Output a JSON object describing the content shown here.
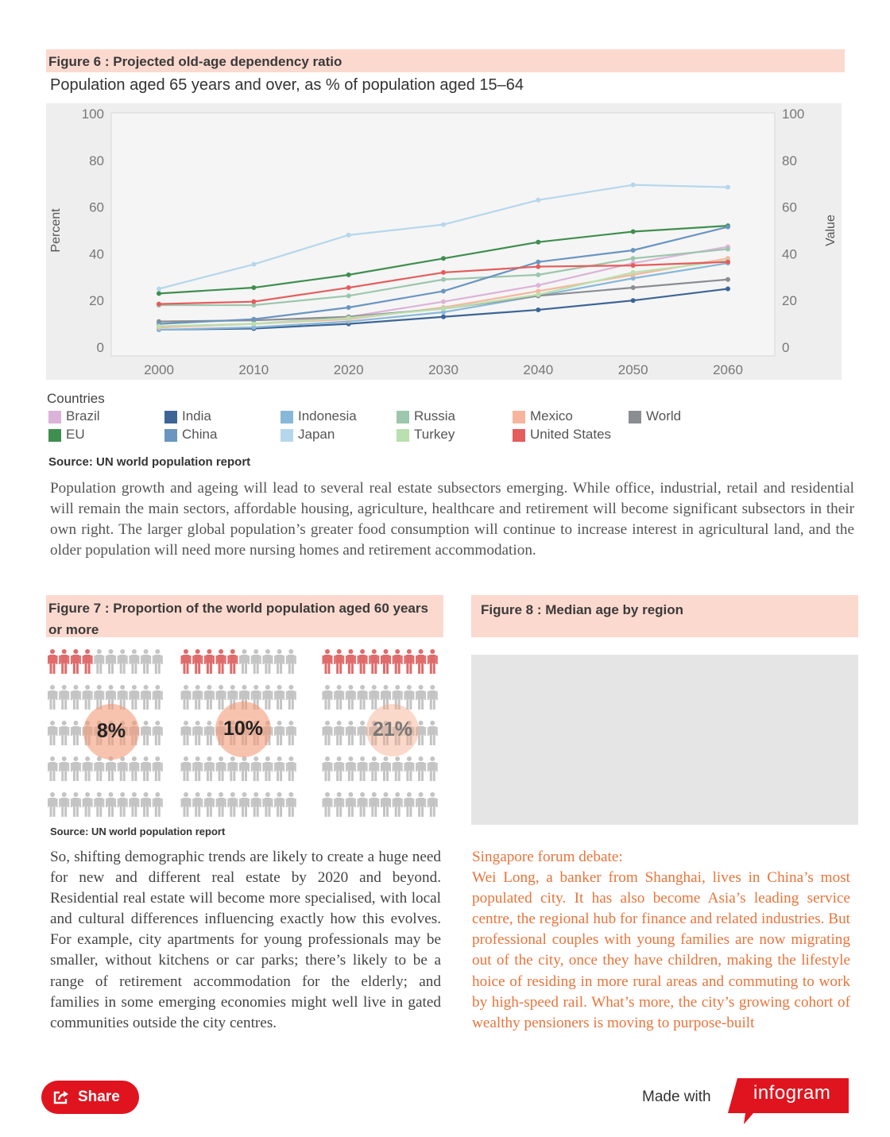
{
  "figure6": {
    "title": "Figure 6 : Projected old-age dependency ratio",
    "subtitle": "Population aged 65 years and over, as % of population aged 15–64",
    "source": "Source: UN world population report",
    "legend_title": "Countries"
  },
  "chart_data": {
    "type": "line",
    "x": [
      2000,
      2010,
      2020,
      2030,
      2040,
      2050,
      2060
    ],
    "ylabel": "Percent",
    "ylabel_right": "Value",
    "ylim": [
      0,
      100
    ],
    "yticks": [
      0,
      20,
      40,
      60,
      80,
      100
    ],
    "grid": false,
    "legend_position": "bottom",
    "series": [
      {
        "name": "Brazil",
        "color": "#dcb3d8",
        "values": [
          8.5,
          10,
          13,
          19.5,
          26.5,
          36,
          43
        ]
      },
      {
        "name": "India",
        "color": "#3c6596",
        "values": [
          7.5,
          8,
          10,
          13,
          16,
          20,
          25
        ]
      },
      {
        "name": "Indonesia",
        "color": "#88b8d8",
        "values": [
          7.5,
          8.5,
          11,
          15,
          22,
          29.5,
          36
        ]
      },
      {
        "name": "Russia",
        "color": "#9cc6ad",
        "values": [
          18,
          18,
          22,
          29,
          31,
          38,
          42
        ]
      },
      {
        "name": "Mexico",
        "color": "#f7b59d",
        "values": [
          8.5,
          10,
          12,
          17,
          24,
          31,
          38
        ]
      },
      {
        "name": "World",
        "color": "#8a8d91",
        "values": [
          11,
          11.5,
          13,
          16.5,
          22,
          25.5,
          29
        ]
      },
      {
        "name": "EU",
        "color": "#3f8f4f",
        "values": [
          23,
          25.5,
          31,
          38,
          45,
          49.5,
          52
        ]
      },
      {
        "name": "China",
        "color": "#6a95c0",
        "values": [
          10,
          12,
          17,
          24,
          36.5,
          41.5,
          51.5
        ]
      },
      {
        "name": "Japan",
        "color": "#b5d7ec",
        "values": [
          25,
          35.5,
          48,
          52.5,
          63,
          69.5,
          68.5
        ]
      },
      {
        "name": "Turkey",
        "color": "#b9e0ae",
        "values": [
          9,
          10,
          12.5,
          16.5,
          22.5,
          32,
          37
        ]
      },
      {
        "name": "United States",
        "color": "#e55c5c",
        "values": [
          18.5,
          19.5,
          25.5,
          32,
          34.5,
          35,
          36.5
        ]
      }
    ]
  },
  "paragraphs": {
    "p1": "Population growth and ageing will lead to several real estate subsectors emerging. While office, industrial, retail and residential will remain the main sectors, affordable housing, agriculture, healthcare and retirement will become significant subsectors in their own right. The larger global population’s greater food consumption will continue to increase interest in agricultural land, and the older population will need more nursing homes and retirement accommodation.",
    "p2": "So, shifting demographic trends are likely to create a huge need for new and different real estate by 2020 and beyond. Residential real estate will become more specialised, with local and cultural differences influencing exactly how this evolves. For example, city apartments for young professionals may be smaller, without kitchens or car parks; there’s likely to be a range of retirement accommodation for the elderly; and families in some emerging economies might well live in gated communities outside the city centres.",
    "p3_heading": "Singapore forum debate:",
    "p3": "Wei Long, a banker from Shanghai, lives in China’s most populated city. It has also become Asia’s leading service centre, the regional hub for finance and related industries. But professional couples with young families are now migrating out of the city, once they have children, making the lifestyle hoice of residing in more rural areas and commuting to work by high-speed rail. What’s more, the city’s growing cohort of wealthy pensioners is moving to purpose-built"
  },
  "figure7": {
    "title": "Figure 7 : Proportion of the world population aged 60 years or more",
    "source": "Source: UN world population report",
    "groups": [
      {
        "label": "8%",
        "highlighted_count": 4
      },
      {
        "label": "10%",
        "highlighted_count": 5
      },
      {
        "label": "21%",
        "highlighted_count": 10
      }
    ],
    "highlight_color": "#e06b6b",
    "base_color": "#c4c4c4"
  },
  "figure8": {
    "title": "Figure 8 : Median age by region"
  },
  "footer": {
    "share_label": "Share",
    "made_with": "Made with",
    "brand": "infogram"
  }
}
